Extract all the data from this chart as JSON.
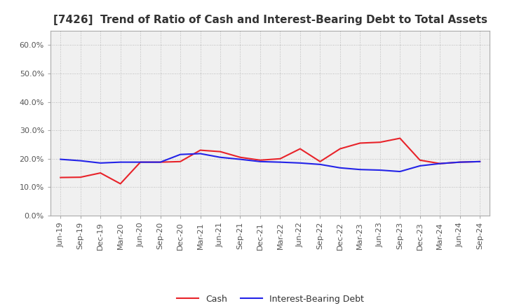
{
  "title": "[7426]  Trend of Ratio of Cash and Interest-Bearing Debt to Total Assets",
  "x_labels": [
    "Jun-19",
    "Sep-19",
    "Dec-19",
    "Mar-20",
    "Jun-20",
    "Sep-20",
    "Dec-20",
    "Mar-21",
    "Jun-21",
    "Sep-21",
    "Dec-21",
    "Mar-22",
    "Jun-22",
    "Sep-22",
    "Dec-22",
    "Mar-23",
    "Jun-23",
    "Sep-23",
    "Dec-23",
    "Mar-24",
    "Jun-24",
    "Sep-24"
  ],
  "cash": [
    0.134,
    0.135,
    0.15,
    0.112,
    0.188,
    0.188,
    0.19,
    0.23,
    0.225,
    0.205,
    0.195,
    0.2,
    0.235,
    0.19,
    0.235,
    0.255,
    0.258,
    0.272,
    0.195,
    0.183,
    0.188,
    0.19
  ],
  "ibd": [
    0.198,
    0.193,
    0.185,
    0.188,
    0.188,
    0.188,
    0.215,
    0.218,
    0.205,
    0.198,
    0.19,
    0.188,
    0.185,
    0.18,
    0.168,
    0.162,
    0.16,
    0.155,
    0.175,
    0.183,
    0.188,
    0.19
  ],
  "cash_color": "#e8232a",
  "ibd_color": "#2323e8",
  "ylim": [
    0.0,
    0.65
  ],
  "yticks": [
    0.0,
    0.1,
    0.2,
    0.3,
    0.4,
    0.5,
    0.6
  ],
  "background_color": "#ffffff",
  "plot_bg_color": "#f0f0f0",
  "grid_color": "#aaaaaa",
  "title_fontsize": 11,
  "tick_fontsize": 8,
  "legend_cash": "Cash",
  "legend_ibd": "Interest-Bearing Debt"
}
